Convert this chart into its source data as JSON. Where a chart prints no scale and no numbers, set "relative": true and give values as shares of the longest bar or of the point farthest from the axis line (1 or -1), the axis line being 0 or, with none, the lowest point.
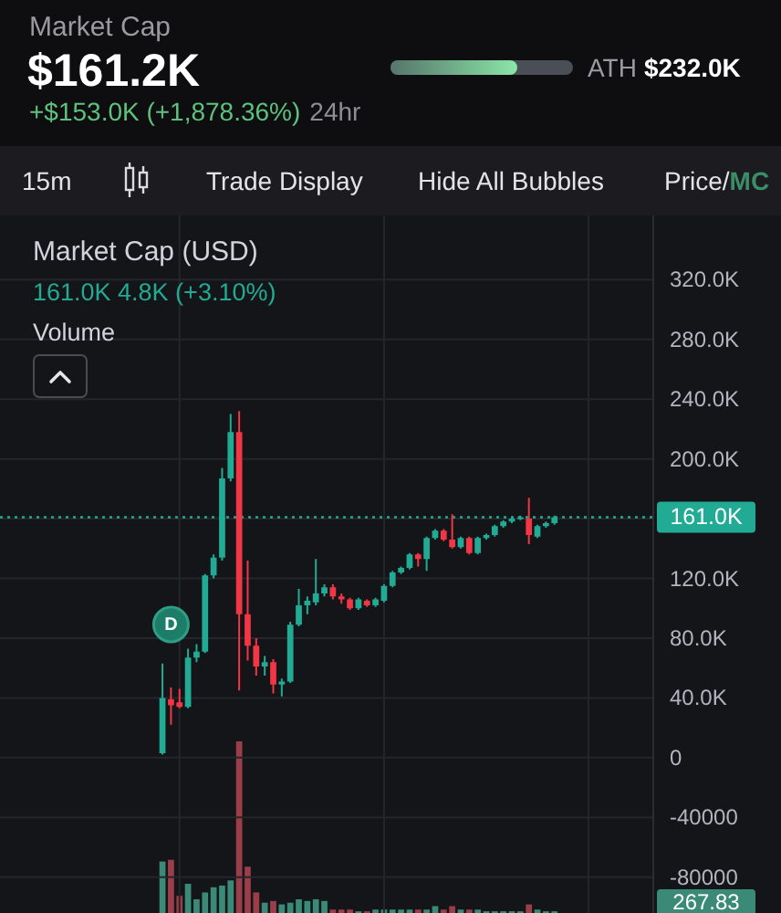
{
  "chart_data": [
    {
      "type": "other",
      "title": "Market Cap",
      "subtitle": "+$153.0K (+1,878.36%)",
      "categories": [
        null,
        "ATH"
      ],
      "values": [
        161200,
        232000
      ],
      "value_labels": [
        "$161.2K",
        "$232.0K"
      ],
      "annotations": [
        "24hr",
        "15m",
        "Trade Display",
        "Hide All Bubbles",
        "Price/",
        "MC"
      ]
    },
    {
      "type": "candlestick",
      "title": "Market Cap (USD)",
      "subtitle": "161.0K 4.8K (+3.10%)",
      "categories": [
        null,
        null,
        null,
        null,
        null,
        null,
        null,
        null,
        null,
        null,
        null,
        null,
        null,
        null,
        null,
        null,
        null,
        null,
        null,
        null,
        null,
        null,
        null,
        null,
        null,
        null,
        null,
        null,
        null,
        null,
        null,
        null,
        null,
        null,
        null,
        null,
        null,
        null,
        null,
        null,
        null,
        null,
        null,
        null,
        null,
        null,
        null
      ],
      "ohlc": [
        [
          3000,
          63000,
          2000,
          40000
        ],
        [
          39000,
          47000,
          22000,
          35000
        ],
        [
          37000,
          46000,
          33000,
          34000
        ],
        [
          34000,
          73000,
          33000,
          67000
        ],
        [
          67000,
          76000,
          64000,
          71000
        ],
        [
          71000,
          123000,
          70000,
          122000
        ],
        [
          122000,
          136000,
          120000,
          134000
        ],
        [
          134000,
          194000,
          132000,
          187000
        ],
        [
          187000,
          230000,
          185000,
          218000
        ],
        [
          218000,
          232000,
          45000,
          96000
        ],
        [
          96000,
          132000,
          65000,
          75000
        ],
        [
          75000,
          80000,
          55000,
          61000
        ],
        [
          61000,
          68000,
          55000,
          64000
        ],
        [
          64000,
          66000,
          43000,
          49000
        ],
        [
          49000,
          53000,
          41000,
          51000
        ],
        [
          51000,
          91000,
          50000,
          89000
        ],
        [
          89000,
          113000,
          88000,
          102000
        ],
        [
          102000,
          108000,
          96000,
          105000
        ],
        [
          104000,
          133000,
          102000,
          110000
        ],
        [
          110000,
          116000,
          108000,
          114000
        ],
        [
          114000,
          116000,
          106000,
          108000
        ],
        [
          108000,
          110000,
          103000,
          106000
        ],
        [
          106000,
          107000,
          99000,
          100000
        ],
        [
          100000,
          107000,
          99000,
          106000
        ],
        [
          105000,
          106000,
          101000,
          102000
        ],
        [
          102000,
          107000,
          101000,
          106000
        ],
        [
          105000,
          116000,
          104000,
          115000
        ],
        [
          115000,
          125000,
          114000,
          124000
        ],
        [
          124000,
          128000,
          123000,
          127000
        ],
        [
          127000,
          137000,
          126000,
          136000
        ],
        [
          136000,
          137000,
          128000,
          133000
        ],
        [
          133000,
          148000,
          125000,
          147000
        ],
        [
          147000,
          153000,
          146000,
          152000
        ],
        [
          152000,
          153000,
          145000,
          146000
        ],
        [
          146000,
          163000,
          140000,
          141000
        ],
        [
          141000,
          148000,
          140000,
          147000
        ],
        [
          147000,
          148000,
          136000,
          137000
        ],
        [
          137000,
          148000,
          136000,
          147000
        ],
        [
          147000,
          150000,
          146000,
          149000
        ],
        [
          149000,
          156000,
          148000,
          155000
        ],
        [
          155000,
          159000,
          154000,
          158000
        ],
        [
          158000,
          161000,
          157000,
          160000
        ],
        [
          160000,
          162000,
          159000,
          161000
        ],
        [
          160000,
          174000,
          143000,
          149000
        ],
        [
          148000,
          156000,
          147000,
          155000
        ],
        [
          155000,
          158000,
          154000,
          157000
        ],
        [
          157000,
          162000,
          156000,
          161000
        ]
      ],
      "colors": [
        "#22ab94",
        "#f23645",
        "#f23645",
        "#22ab94",
        "#22ab94",
        "#22ab94",
        "#22ab94",
        "#22ab94",
        "#22ab94",
        "#f23645",
        "#f23645",
        "#f23645",
        "#22ab94",
        "#f23645",
        "#22ab94",
        "#22ab94",
        "#22ab94",
        "#22ab94",
        "#22ab94",
        "#22ab94",
        "#f23645",
        "#f23645",
        "#f23645",
        "#22ab94",
        "#f23645",
        "#22ab94",
        "#22ab94",
        "#22ab94",
        "#22ab94",
        "#22ab94",
        "#f23645",
        "#22ab94",
        "#22ab94",
        "#f23645",
        "#f23645",
        "#22ab94",
        "#f23645",
        "#22ab94",
        "#22ab94",
        "#22ab94",
        "#22ab94",
        "#22ab94",
        "#22ab94",
        "#f23645",
        "#22ab94",
        "#22ab94",
        "#22ab94"
      ],
      "ylim": [
        -104000,
        363000
      ],
      "yticks": [
        {
          "value": 320000,
          "label": "320.0K"
        },
        {
          "value": 280000,
          "label": "280.0K"
        },
        {
          "value": 240000,
          "label": "240.0K"
        },
        {
          "value": 200000,
          "label": "200.0K"
        },
        {
          "value": 160000,
          "label": null
        },
        {
          "value": 120000,
          "label": "120.0K"
        },
        {
          "value": 80000,
          "label": "80.0K"
        },
        {
          "value": 40000,
          "label": "40.0K"
        },
        0,
        -40000,
        -80000
      ],
      "grid": true,
      "ref_lines": [
        {
          "axis": "y",
          "value": 161000,
          "label": "161.0K",
          "color": "#22ab94",
          "line_style": "dotted"
        }
      ],
      "annotations": [
        "D",
        "Volume"
      ]
    },
    {
      "type": "bar",
      "relative": true,
      "categories": [
        null,
        null,
        null,
        null,
        null,
        null,
        null,
        null,
        null,
        null,
        null,
        null,
        null,
        null,
        null,
        null,
        null,
        null,
        null,
        null,
        null,
        null,
        null,
        null,
        null,
        null,
        null,
        null,
        null,
        null,
        null,
        null,
        null,
        null,
        null,
        null,
        null,
        null,
        null,
        null,
        null,
        null,
        null,
        null,
        null,
        null,
        null
      ],
      "values": [
        0.3,
        0.31,
        0.1,
        0.17,
        0.08,
        0.12,
        0.15,
        0.16,
        0.19,
        1,
        0.27,
        0.12,
        0.06,
        0.07,
        0.05,
        0.06,
        0.08,
        0.07,
        0.08,
        0.07,
        0.02,
        0.02,
        0.02,
        0.01,
        0.01,
        0.02,
        0.02,
        0.02,
        0.02,
        0.02,
        0.02,
        0.02,
        0.04,
        0.02,
        0.04,
        0.02,
        0.02,
        0.02,
        0.01,
        0.01,
        0.01,
        0.01,
        0.01,
        0.05,
        0.02,
        0.01,
        0.01
      ],
      "colors": [
        "#3a8a77",
        "#9a3e4a",
        "#9a3e4a",
        "#3a8a77",
        "#3a8a77",
        "#3a8a77",
        "#3a8a77",
        "#3a8a77",
        "#3a8a77",
        "#9a3e4a",
        "#9a3e4a",
        "#9a3e4a",
        "#3a8a77",
        "#9a3e4a",
        "#3a8a77",
        "#3a8a77",
        "#3a8a77",
        "#3a8a77",
        "#3a8a77",
        "#3a8a77",
        "#9a3e4a",
        "#9a3e4a",
        "#9a3e4a",
        "#3a8a77",
        "#9a3e4a",
        "#3a8a77",
        "#3a8a77",
        "#3a8a77",
        "#3a8a77",
        "#3a8a77",
        "#9a3e4a",
        "#3a8a77",
        "#3a8a77",
        "#9a3e4a",
        "#9a3e4a",
        "#3a8a77",
        "#9a3e4a",
        "#3a8a77",
        "#3a8a77",
        "#3a8a77",
        "#3a8a77",
        "#3a8a77",
        "#3a8a77",
        "#9a3e4a",
        "#3a8a77",
        "#3a8a77",
        "#3a8a77"
      ],
      "annotations": [
        "267.83"
      ]
    }
  ]
}
